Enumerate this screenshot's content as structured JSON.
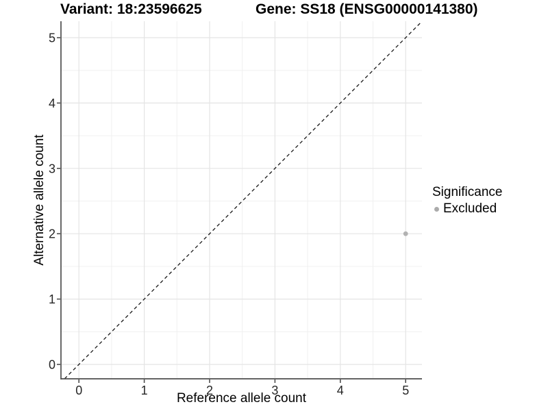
{
  "chart_data": {
    "type": "scatter",
    "title_left": "Variant: 18:23596625",
    "title_right": "Gene: SS18 (ENSG00000141380)",
    "xlabel": "Reference allele count",
    "ylabel": "Alternative allele count",
    "x_ticks": [
      0,
      1,
      2,
      3,
      4,
      5
    ],
    "y_ticks": [
      0,
      1,
      2,
      3,
      4,
      5
    ],
    "xlim": [
      -0.25,
      5.25
    ],
    "ylim": [
      -0.25,
      5.25
    ],
    "grid": {
      "major": true,
      "minor": true
    },
    "points": [
      {
        "x": 5,
        "y": 2,
        "series": "Excluded"
      }
    ],
    "reference_line": {
      "slope": 1,
      "intercept": 0,
      "style": "dashed"
    },
    "legend": {
      "title": "Significance",
      "position": "right",
      "items": [
        {
          "label": "Excluded",
          "color": "#ababab"
        }
      ]
    },
    "colors": {
      "background": "#ffffff",
      "point": "#b2b2b2",
      "grid_major": "#e4e4e4",
      "grid_minor": "#f0f0f0",
      "axis_line": "#4d4d4d",
      "tick_text": "#262626",
      "dashed_line": "#1a1a1a"
    }
  }
}
